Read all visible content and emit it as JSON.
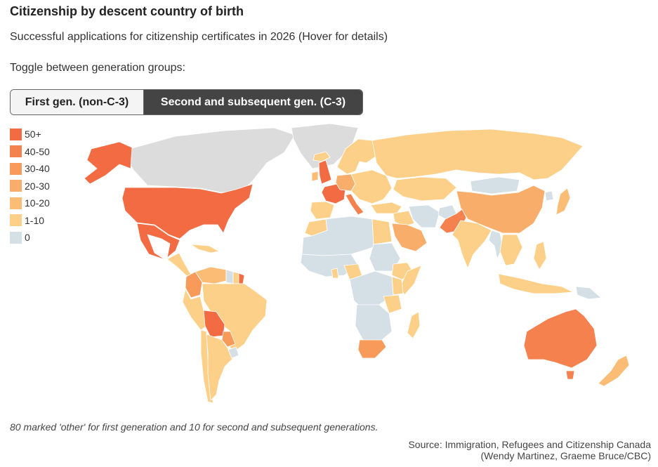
{
  "header": {
    "title": "Citizenship by descent country of birth",
    "subtitle": "Successful applications for citizenship certificates in 2026 (Hover for details)",
    "toggle_prompt": "Toggle between generation groups:"
  },
  "toggle": {
    "options": [
      {
        "label": "First gen. (non-C-3)",
        "selected": false
      },
      {
        "label": "Second and subsequent gen. (C-3)",
        "selected": true
      }
    ]
  },
  "legend": {
    "items": [
      {
        "label": "50+",
        "color": "#f26b43"
      },
      {
        "label": "40-50",
        "color": "#f5814e"
      },
      {
        "label": "30-40",
        "color": "#f79a5a"
      },
      {
        "label": "20-30",
        "color": "#f9ad6a"
      },
      {
        "label": "10-20",
        "color": "#fbbd76"
      },
      {
        "label": "1-10",
        "color": "#fdd08a"
      },
      {
        "label": "0",
        "color": "#d4dfe6"
      }
    ],
    "no_data_color": "#dcdcdc"
  },
  "map": {
    "regions": [
      {
        "id": "canada",
        "bin": "none"
      },
      {
        "id": "greenland",
        "bin": "none"
      },
      {
        "id": "alaska",
        "bin": "50+"
      },
      {
        "id": "usa",
        "bin": "50+"
      },
      {
        "id": "mexico",
        "bin": "50+"
      },
      {
        "id": "central-america",
        "bin": "1-10"
      },
      {
        "id": "caribbean",
        "bin": "1-10"
      },
      {
        "id": "colombia",
        "bin": "30-40"
      },
      {
        "id": "venezuela",
        "bin": "10-20"
      },
      {
        "id": "guyana",
        "bin": "0"
      },
      {
        "id": "suriname",
        "bin": "1-10"
      },
      {
        "id": "french-guiana",
        "bin": "50+"
      },
      {
        "id": "peru",
        "bin": "1-10"
      },
      {
        "id": "brazil",
        "bin": "1-10"
      },
      {
        "id": "bolivia",
        "bin": "50+"
      },
      {
        "id": "paraguay",
        "bin": "30-40"
      },
      {
        "id": "chile",
        "bin": "1-10"
      },
      {
        "id": "argentina",
        "bin": "1-10"
      },
      {
        "id": "uruguay",
        "bin": "0"
      },
      {
        "id": "iceland",
        "bin": "1-10"
      },
      {
        "id": "uk",
        "bin": "50+"
      },
      {
        "id": "ireland",
        "bin": "10-20"
      },
      {
        "id": "france",
        "bin": "50+"
      },
      {
        "id": "iberia",
        "bin": "1-10"
      },
      {
        "id": "italy",
        "bin": "40-50"
      },
      {
        "id": "germany",
        "bin": "20-30"
      },
      {
        "id": "scandinavia",
        "bin": "1-10"
      },
      {
        "id": "eastern-europe",
        "bin": "1-10"
      },
      {
        "id": "russia",
        "bin": "1-10"
      },
      {
        "id": "kazakhstan",
        "bin": "1-10"
      },
      {
        "id": "mongolia",
        "bin": "0"
      },
      {
        "id": "china",
        "bin": "20-30"
      },
      {
        "id": "north-korea",
        "bin": "0"
      },
      {
        "id": "japan",
        "bin": "10-20"
      },
      {
        "id": "turkey",
        "bin": "1-10"
      },
      {
        "id": "middle-east",
        "bin": "1-10"
      },
      {
        "id": "iran",
        "bin": "0"
      },
      {
        "id": "saudi-arabia",
        "bin": "20-30"
      },
      {
        "id": "pakistan",
        "bin": "40-50"
      },
      {
        "id": "afghanistan",
        "bin": "0"
      },
      {
        "id": "india",
        "bin": "1-10"
      },
      {
        "id": "myanmar",
        "bin": "0"
      },
      {
        "id": "southeast-asia",
        "bin": "1-10"
      },
      {
        "id": "indonesia",
        "bin": "1-10"
      },
      {
        "id": "philippines",
        "bin": "1-10"
      },
      {
        "id": "papua-new-guinea",
        "bin": "0"
      },
      {
        "id": "australia",
        "bin": "40-50"
      },
      {
        "id": "tasmania",
        "bin": "40-50"
      },
      {
        "id": "new-zealand",
        "bin": "10-20"
      },
      {
        "id": "north-africa",
        "bin": "0"
      },
      {
        "id": "morocco",
        "bin": "1-10"
      },
      {
        "id": "egypt",
        "bin": "1-10"
      },
      {
        "id": "west-africa",
        "bin": "0"
      },
      {
        "id": "nigeria",
        "bin": "1-10"
      },
      {
        "id": "ghana",
        "bin": "1-10"
      },
      {
        "id": "sudan",
        "bin": "0"
      },
      {
        "id": "ethiopia",
        "bin": "1-10"
      },
      {
        "id": "somalia",
        "bin": "1-10"
      },
      {
        "id": "kenya",
        "bin": "1-10"
      },
      {
        "id": "tanzania",
        "bin": "1-10"
      },
      {
        "id": "central-africa",
        "bin": "0"
      },
      {
        "id": "southern-africa",
        "bin": "0"
      },
      {
        "id": "south-africa",
        "bin": "30-40"
      },
      {
        "id": "madagascar",
        "bin": "1-10"
      },
      {
        "id": "antarctic-none",
        "bin": "none"
      }
    ]
  },
  "footer": {
    "note": "80 marked 'other' for first generation and 10 for second and subsequent generations.",
    "source_line1": "Source: Immigration, Refugees and Citizenship Canada",
    "source_line2": "(Wendy Martinez, Graeme Bruce/CBC)"
  }
}
